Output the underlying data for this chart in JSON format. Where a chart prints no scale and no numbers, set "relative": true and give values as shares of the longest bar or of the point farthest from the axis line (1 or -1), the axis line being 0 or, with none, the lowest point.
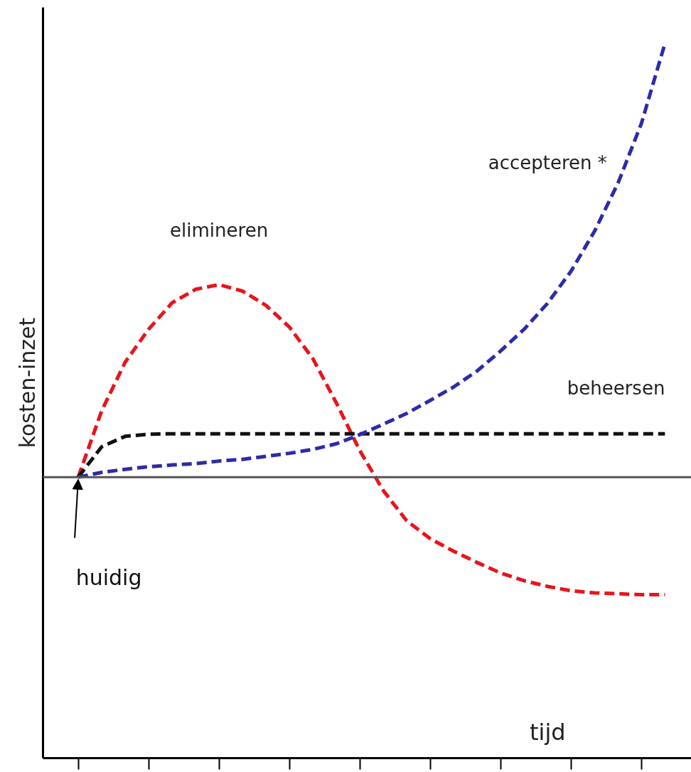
{
  "chart_data": {
    "type": "line",
    "relative": true,
    "ylabel": "kosten-inzet",
    "categories": [
      null,
      null,
      null,
      null,
      null,
      null,
      null,
      null,
      null,
      null,
      null,
      null,
      null,
      null,
      null,
      null,
      null,
      null,
      null,
      null,
      null,
      null,
      null,
      null,
      null,
      null
    ],
    "series": [
      {
        "name": "elimineren",
        "color": "#e8141c",
        "values": [
          0,
          0.153,
          0.265,
          0.341,
          0.402,
          0.433,
          0.444,
          0.429,
          0.396,
          0.346,
          0.273,
          0.171,
          0.061,
          -0.031,
          -0.101,
          -0.142,
          -0.171,
          -0.197,
          -0.221,
          -0.239,
          -0.252,
          -0.262,
          -0.267,
          -0.269,
          -0.271,
          -0.271
        ]
      },
      {
        "name": "beheersen",
        "color": "#111111",
        "values": [
          0,
          0.07,
          0.094,
          0.099,
          0.1,
          0.1,
          0.1,
          0.1,
          0.1,
          0.1,
          0.1,
          0.1,
          0.1,
          0.1,
          0.1,
          0.1,
          0.1,
          0.1,
          0.1,
          0.1,
          0.1,
          0.1,
          0.1,
          0.1,
          0.1,
          0.1
        ]
      },
      {
        "name": "accepteren *",
        "color": "#2c2ca8",
        "values": [
          0,
          0.011,
          0.018,
          0.024,
          0.028,
          0.031,
          0.037,
          0.041,
          0.048,
          0.055,
          0.064,
          0.077,
          0.098,
          0.122,
          0.147,
          0.177,
          0.208,
          0.245,
          0.291,
          0.341,
          0.401,
          0.475,
          0.567,
          0.678,
          0.816,
          1.0
        ]
      }
    ],
    "annotations": [
      "huidig",
      "tijd"
    ],
    "line_style": "dashed",
    "grid": false
  }
}
